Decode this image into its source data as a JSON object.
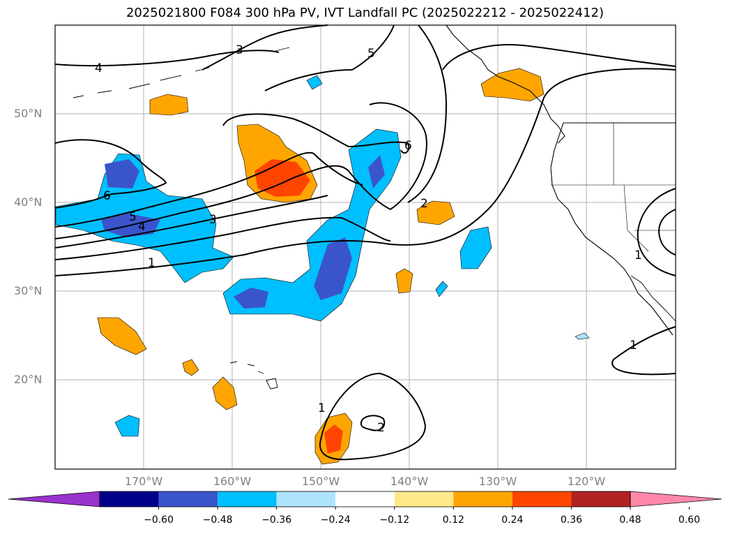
{
  "title": "2025021800 F084 300 hPa PV, IVT Landfall PC (2025022212 - 2025022412)",
  "lat_labels": [
    "50°N",
    "40°N",
    "30°N",
    "20°N"
  ],
  "lon_labels": [
    "170°W",
    "160°W",
    "150°W",
    "140°W",
    "130°W",
    "120°W"
  ],
  "contour_labels": [
    "4",
    "3",
    "5",
    "6",
    "6",
    "5",
    "4",
    "3",
    "1",
    "2",
    "1",
    "1",
    "1",
    "2"
  ],
  "colorbar": {
    "ticks": [
      "−0.60",
      "−0.48",
      "−0.36",
      "−0.24",
      "−0.12",
      "0.12",
      "0.24",
      "0.36",
      "0.48",
      "0.60"
    ],
    "colors": [
      "#9932cc",
      "#00008b",
      "#3a55cc",
      "#00bfff",
      "#aee4fb",
      "#ffffff",
      "#fde98a",
      "#ffa500",
      "#ff4500",
      "#b22222",
      "#ff88aa"
    ]
  }
}
